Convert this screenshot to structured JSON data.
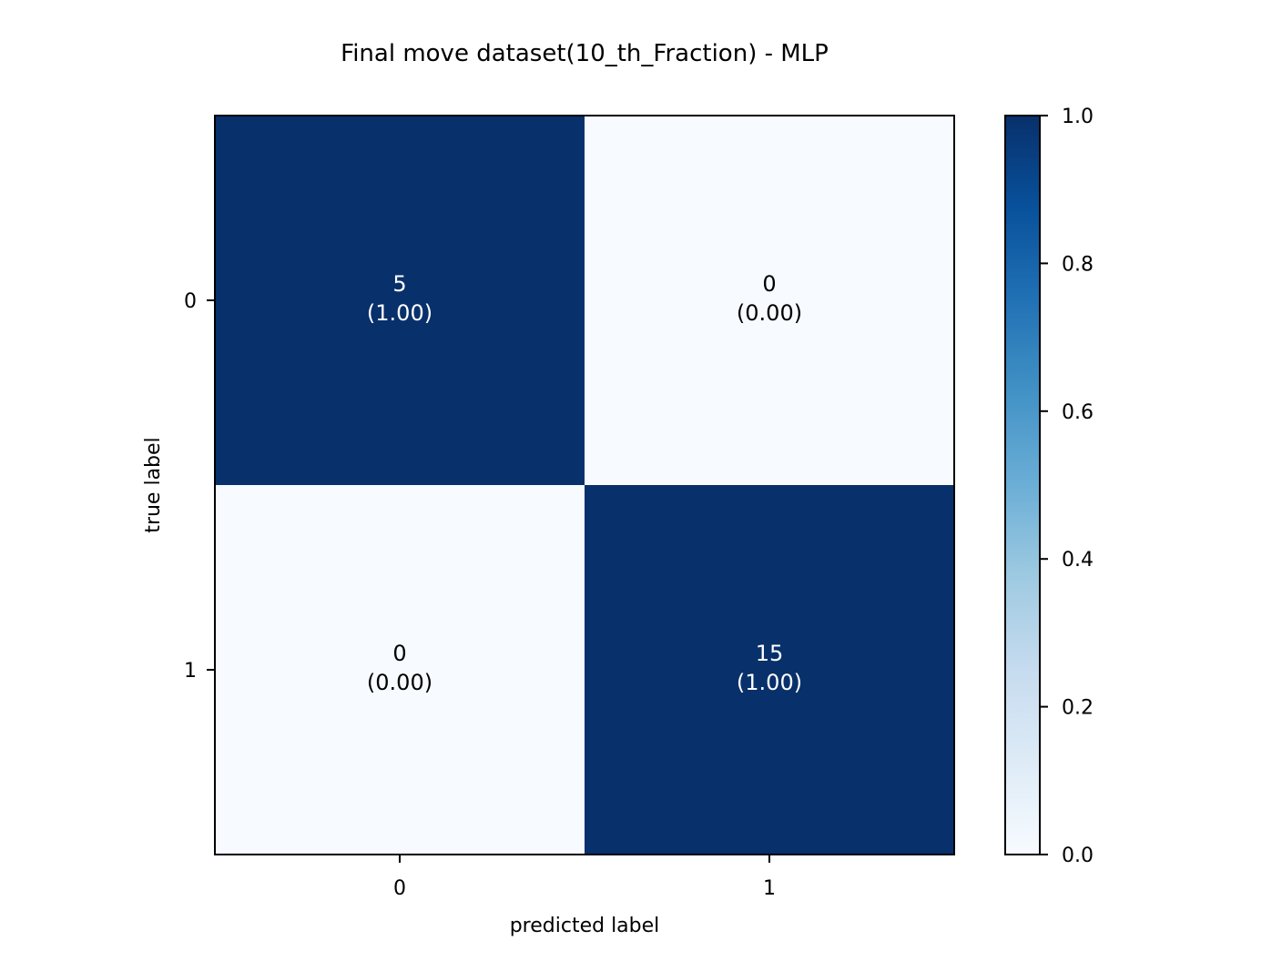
{
  "chart_data": {
    "type": "heatmap",
    "title": "Final move dataset(10_th_Fraction) - MLP",
    "xlabel": "predicted label",
    "ylabel": "true label",
    "x_tick_labels": [
      "0",
      "1"
    ],
    "y_tick_labels": [
      "0",
      "1"
    ],
    "counts": [
      [
        5,
        0
      ],
      [
        0,
        15
      ]
    ],
    "normalized": [
      [
        1.0,
        0.0
      ],
      [
        0.0,
        1.0
      ]
    ],
    "cell_labels": [
      [
        "(1.00)",
        "(0.00)"
      ],
      [
        "(0.00)",
        "(1.00)"
      ]
    ],
    "colorbar": {
      "range": [
        0.0,
        1.0
      ],
      "tick_values": [
        0.0,
        0.2,
        0.4,
        0.6,
        0.8,
        1.0
      ],
      "tick_labels": [
        "0.0",
        "0.2",
        "0.4",
        "0.6",
        "0.8",
        "1.0"
      ],
      "colormap": "Blues"
    },
    "colors": {
      "low": "#f7fbff",
      "high": "#08306b",
      "text_on_dark": "#ffffff",
      "text_on_light": "#000000"
    },
    "grid": false
  }
}
